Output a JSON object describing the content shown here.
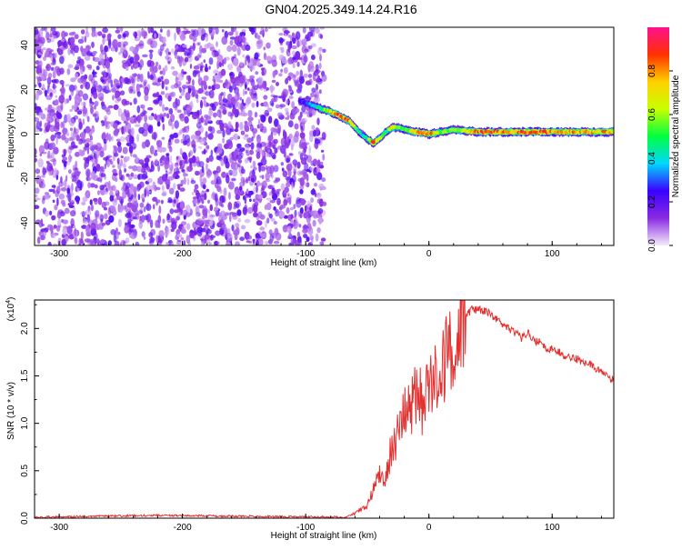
{
  "title": "GN04.2025.349.14.24.R16",
  "spectrogram": {
    "type": "heatmap",
    "xlabel": "Height of straight line (km)",
    "ylabel": "Frequency (Hz)",
    "xlim": [
      -320,
      150
    ],
    "ylim": [
      -50,
      48
    ],
    "x_ticks": [
      -300,
      -200,
      -100,
      0,
      100
    ],
    "y_ticks": [
      -40,
      -20,
      0,
      20,
      40
    ],
    "noise_region_x": [
      -320,
      -85
    ],
    "ridge": {
      "x": [
        -105,
        -95,
        -85,
        -75,
        -65,
        -60,
        -55,
        -50,
        -45,
        -40,
        -35,
        -30,
        -25,
        -20,
        -10,
        0,
        10,
        20,
        40,
        60,
        80,
        100,
        120,
        150
      ],
      "freq": [
        15,
        13,
        11,
        9,
        6,
        3,
        0,
        -2,
        -4,
        -2,
        1,
        3,
        3,
        2,
        1,
        0,
        1,
        2,
        1,
        1,
        1,
        1,
        1,
        1
      ],
      "amplitude": [
        0.25,
        0.35,
        0.6,
        0.9,
        0.8,
        0.6,
        0.4,
        0.5,
        0.9,
        0.6,
        0.5,
        0.8,
        0.6,
        0.5,
        0.9,
        0.9,
        0.6,
        0.55,
        0.9,
        0.85,
        0.9,
        0.85,
        0.8,
        0.8
      ]
    }
  },
  "colorbar": {
    "label": "Normalized spectral amplitude",
    "range": [
      0,
      1
    ],
    "ticks": [
      "0.0",
      "0.2",
      "0.4",
      "0.6",
      "0.8"
    ],
    "tick_values": [
      0.0,
      0.2,
      0.4,
      0.6,
      0.8
    ],
    "colors": [
      "#f4ecfb",
      "#8a2be2",
      "#3a00ff",
      "#00d8ff",
      "#00ff40",
      "#c8ff00",
      "#ffd000",
      "#ff3000",
      "#ff1090"
    ]
  },
  "chart_data": {
    "type": "line",
    "xlabel": "Height of straight line (km)",
    "ylabel": "SNR (10 * v/v)",
    "y_multiplier": "(x10",
    "y_multiplier_exp": "4",
    "y_multiplier_close": ")",
    "xlim": [
      -320,
      150
    ],
    "ylim": [
      0,
      2.3
    ],
    "x_ticks": [
      -300,
      -200,
      -100,
      0,
      100
    ],
    "y_ticks": [
      0.0,
      0.5,
      1.0,
      1.5,
      2.0
    ],
    "y_tick_labels": [
      "0.0",
      "0.5",
      "1.0",
      "1.5",
      "2.0"
    ],
    "series": [
      {
        "color": "#e53030",
        "x": [
          -320,
          -220,
          -70,
          -60,
          -50,
          -45,
          -40,
          -35,
          -30,
          -25,
          -20,
          -15,
          -10,
          -5,
          0,
          5,
          10,
          15,
          20,
          25,
          30,
          35,
          40,
          45,
          50,
          55,
          60,
          65,
          70,
          75,
          80,
          85,
          90,
          95,
          100,
          110,
          120,
          130,
          140,
          150
        ],
        "y": [
          0.0,
          0.02,
          0.0,
          0.05,
          0.15,
          0.3,
          0.55,
          0.4,
          0.8,
          0.9,
          1.1,
          1.2,
          1.4,
          1.2,
          1.55,
          1.6,
          1.75,
          1.7,
          1.9,
          2.05,
          2.15,
          2.2,
          2.2,
          2.18,
          2.15,
          2.1,
          2.05,
          2.0,
          1.95,
          1.9,
          1.95,
          1.88,
          1.85,
          1.8,
          1.78,
          1.72,
          1.68,
          1.62,
          1.55,
          1.45
        ]
      }
    ]
  }
}
